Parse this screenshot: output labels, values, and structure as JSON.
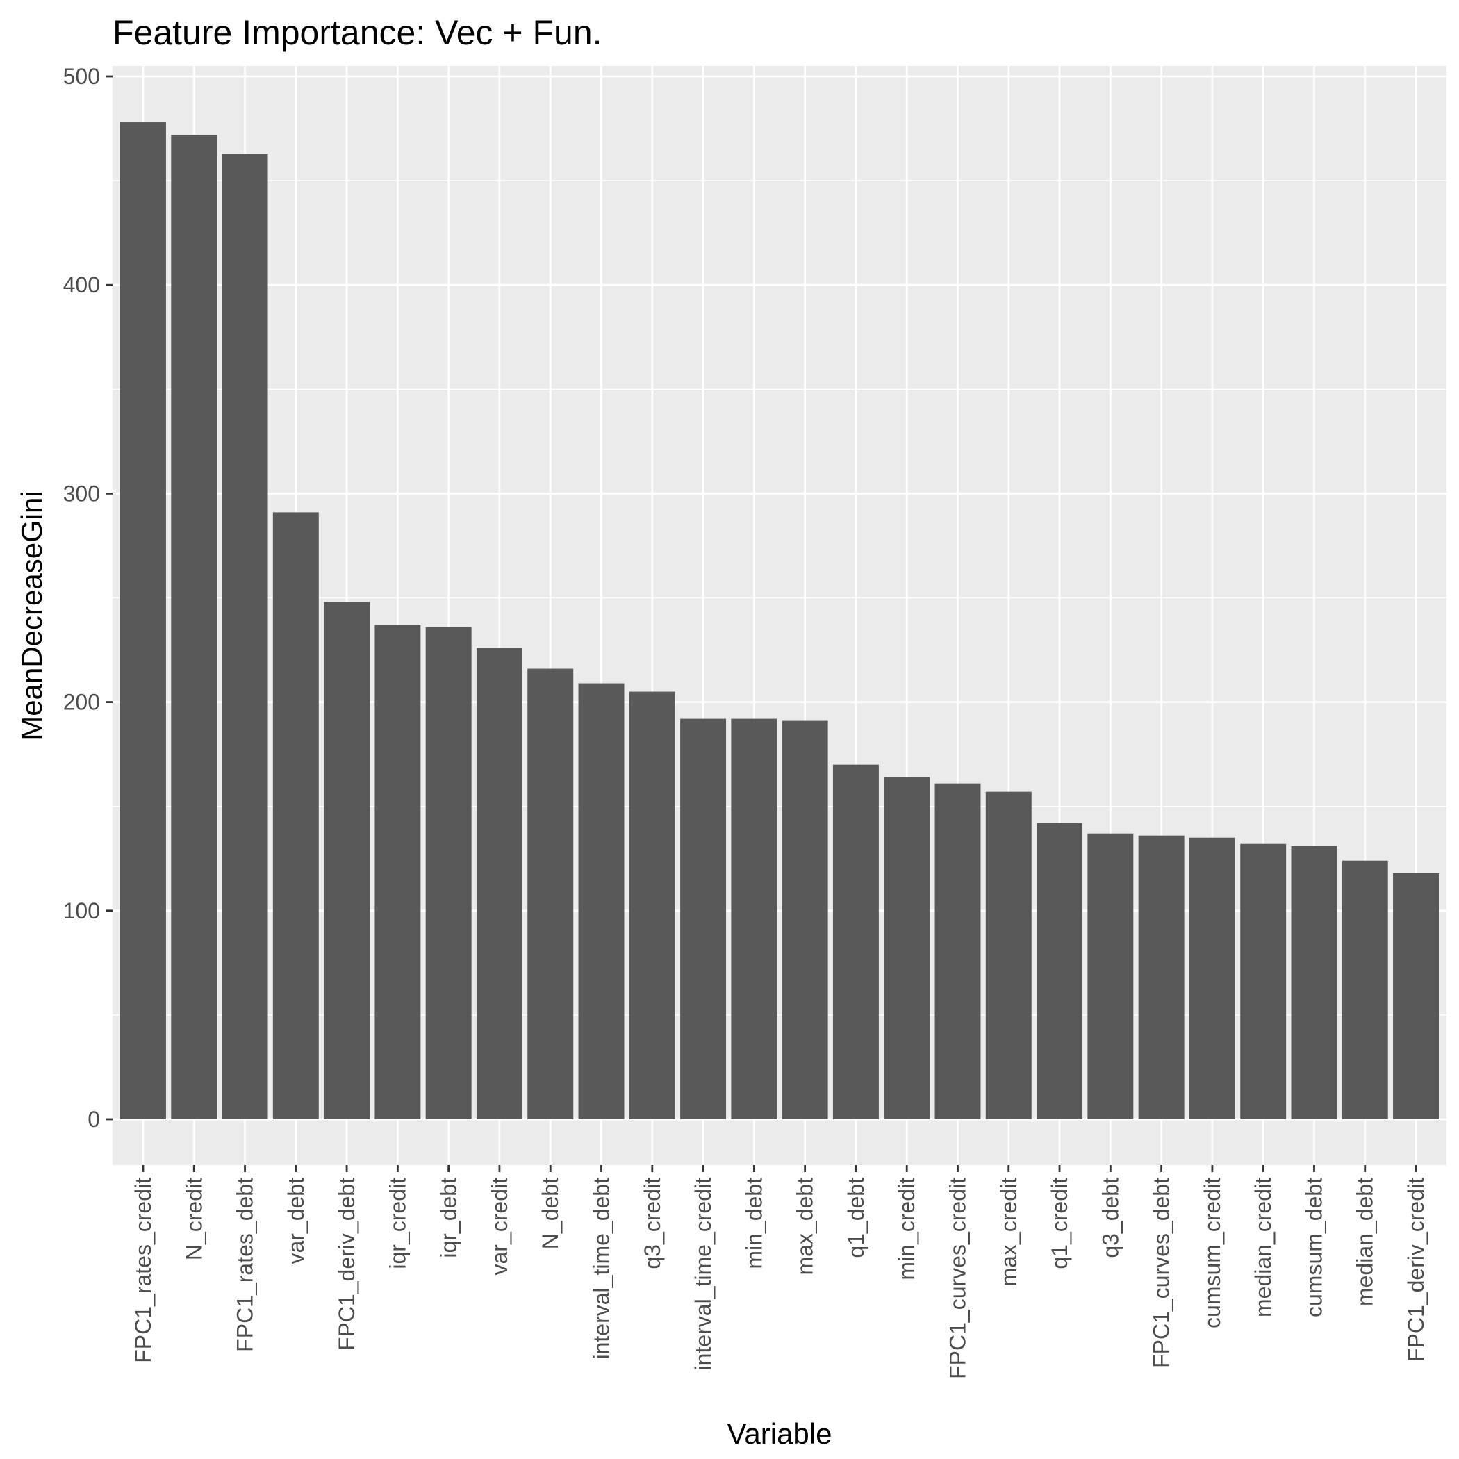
{
  "chart_data": {
    "type": "bar",
    "title": "Feature Importance: Vec + Fun.",
    "xlabel": "Variable",
    "ylabel": "MeanDecreaseGini",
    "ylim": [
      -22,
      505
    ],
    "yticks": [
      0,
      100,
      200,
      300,
      400,
      500
    ],
    "grid": true,
    "categories": [
      "FPC1_rates_credit",
      "N_credit",
      "FPC1_rates_debt",
      "var_debt",
      "FPC1_deriv_debt",
      "iqr_credit",
      "iqr_debt",
      "var_credit",
      "N_debt",
      "interval_time_debt",
      "q3_credit",
      "interval_time_credit",
      "min_debt",
      "max_debt",
      "q1_debt",
      "min_credit",
      "FPC1_curves_credit",
      "max_credit",
      "q1_credit",
      "q3_debt",
      "FPC1_curves_debt",
      "cumsum_credit",
      "median_credit",
      "cumsum_debt",
      "median_debt",
      "FPC1_deriv_credit"
    ],
    "values": [
      478,
      472,
      463,
      291,
      248,
      237,
      236,
      226,
      216,
      209,
      205,
      192,
      192,
      191,
      170,
      164,
      161,
      157,
      142,
      137,
      136,
      135,
      132,
      131,
      124,
      118
    ],
    "colors": {
      "bar": "#595959",
      "panel": "#ebebeb",
      "grid": "#ffffff",
      "tick": "#333333"
    }
  }
}
